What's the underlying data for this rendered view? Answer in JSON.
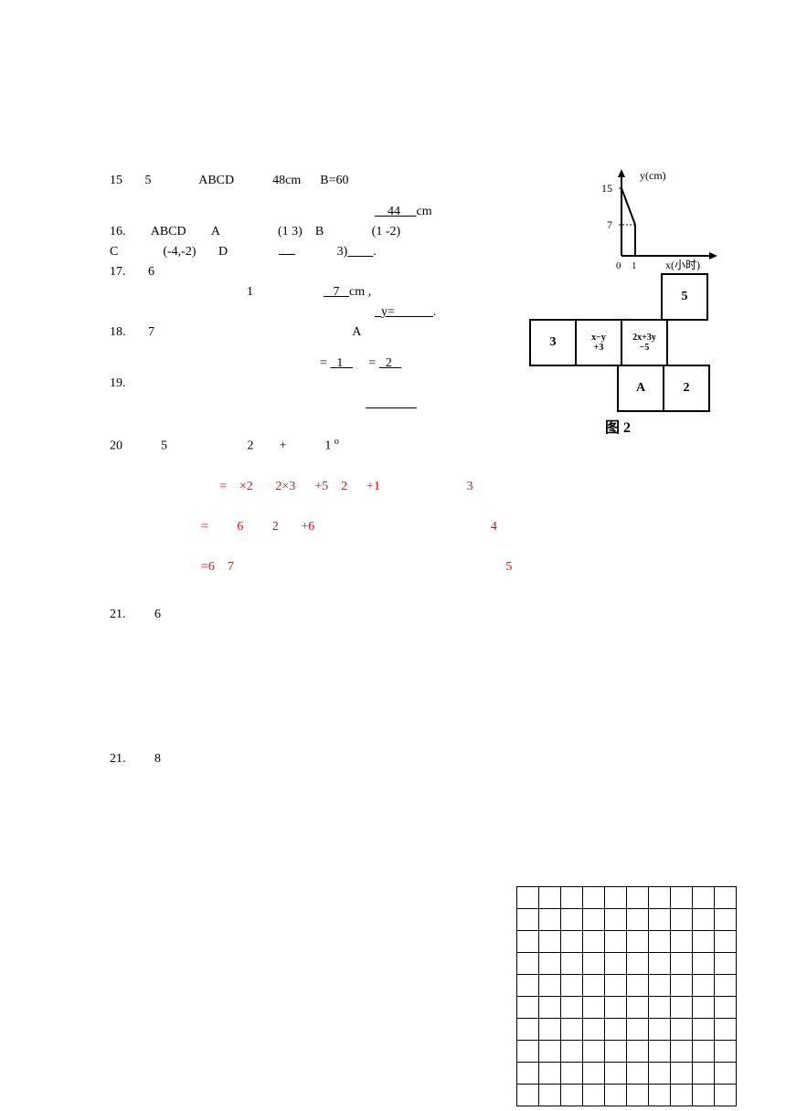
{
  "q15": {
    "num": "15",
    "txt1": "5",
    "txt2": "ABCD",
    "txt3": "48cm",
    "txt4": "B=60",
    "ans": "44",
    "unit": "cm"
  },
  "q16": {
    "num": "16.",
    "txt1": "ABCD",
    "txt2": "A",
    "p1": "(1   3)",
    "txt3": "B",
    "p2": "(1    -2)",
    "line2a": "C",
    "p3": "(-4,-2)",
    "txt4": "D",
    "p4": "3)"
  },
  "q17": {
    "num": "17.",
    "txt1": "6",
    "txt2": "1",
    "ans1": "7",
    "unit1": "cm ,",
    "ans2": "y="
  },
  "q18": {
    "num": "18.",
    "txt1": "7",
    "txt2": "A",
    "eq1": "=",
    "a1": "1",
    "a2": "=",
    "a3": "2"
  },
  "q19": {
    "num": "19."
  },
  "q20": {
    "num": "20",
    "txt1": "5",
    "txt2": "2",
    "txt3": "+",
    "txt4": "1",
    "sup": "o",
    "l1": {
      "a": "= ",
      "b": "×2",
      "c": "2×3",
      "d": "+5",
      "e": "2",
      "f": "+1",
      "g": "3"
    },
    "l2": {
      "a": "=",
      "b": "6",
      "c": "2",
      "d": "+6",
      "g": "4"
    },
    "l3": {
      "a": "=6",
      "b": "7",
      "g": "5"
    }
  },
  "q21a": {
    "num": "21.",
    "txt1": "6"
  },
  "q21b": {
    "num": "21.",
    "txt1": "8"
  },
  "axis": {
    "ylabel": "y(cm)",
    "xlabel": "x(小时)",
    "y1": "15",
    "y2": "7",
    "x0": "0",
    "x1": "1"
  },
  "net": {
    "c5": "5",
    "c3": "3",
    "cxy": "x-y\n+3",
    "c2x": "2x+3y\n-5",
    "cA": "A",
    "c2": "2",
    "label": "图 2"
  },
  "grid": {
    "rows": 10,
    "cols": 10
  }
}
